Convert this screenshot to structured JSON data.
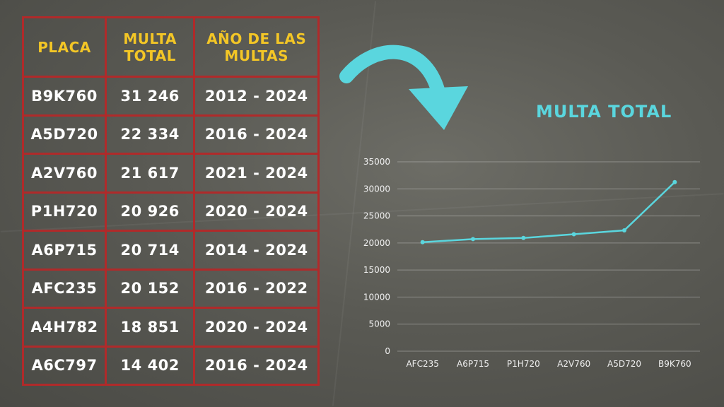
{
  "table": {
    "headers": [
      "PLACA",
      "MULTA TOTAL",
      "AÑO DE LAS MULTAS"
    ],
    "rows": [
      [
        "B9K760",
        "31 246",
        "2012 - 2024"
      ],
      [
        "A5D720",
        "22 334",
        "2016 - 2024"
      ],
      [
        "A2V760",
        "21 617",
        "2021 - 2024"
      ],
      [
        "P1H720",
        "20 926",
        "2020 - 2024"
      ],
      [
        "A6P715",
        "20 714",
        "2014 - 2024"
      ],
      [
        "AFC235",
        "20 152",
        "2016 - 2022"
      ],
      [
        "A4H782",
        "18 851",
        "2020 - 2024"
      ],
      [
        "A6C797",
        "14 402",
        "2016 - 2024"
      ]
    ]
  },
  "colors": {
    "border": "#b02a2a",
    "header_text": "#f3c626",
    "accent": "#5ad6de"
  },
  "chart_data": {
    "type": "line",
    "title": "MULTA TOTAL",
    "categories": [
      "AFC235",
      "A6P715",
      "P1H720",
      "A2V760",
      "A5D720",
      "B9K760"
    ],
    "series": [
      {
        "values": [
          20152,
          20714,
          20926,
          21617,
          22334,
          31246
        ]
      }
    ],
    "yticks": [
      0,
      5000,
      10000,
      15000,
      20000,
      25000,
      30000,
      35000
    ],
    "ylim": [
      0,
      35000
    ],
    "grid": true,
    "legend": "none"
  }
}
